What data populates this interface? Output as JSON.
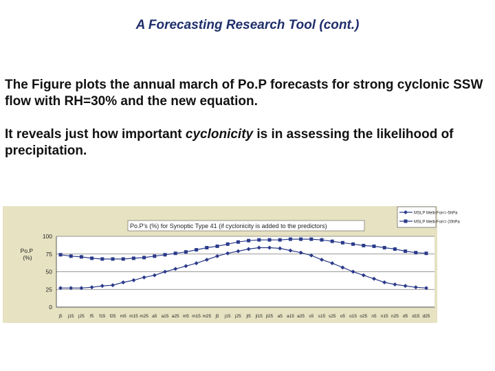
{
  "slide": {
    "title": "A Forecasting Research Tool (cont.)",
    "paragraph1": "The Figure plots the annual march of Po.P forecasts for strong cyclonic SSW flow with RH=30% and the new equation.",
    "paragraph2_before": "It reveals just how important ",
    "paragraph2_emphasis": "cyclonicity",
    "paragraph2_after": " is in assessing the likelihood of precipitation."
  },
  "chart_data": {
    "type": "line",
    "title": "Po.P's (%) for Synoptic Type 41 (if cyclonicity is added to the predictors)",
    "ylabel": "Po.P (%)",
    "ylim": [
      0,
      100
    ],
    "yticks": [
      0,
      25,
      50,
      75,
      100
    ],
    "grid": true,
    "legend_position": "top-right",
    "colors": {
      "background": "#e6e2c2",
      "plot_area": "#ffffff",
      "line": "#2a3a8a",
      "gridline": "#777777"
    },
    "xtick_labels": [
      "j5",
      "j15",
      "j25",
      "f5",
      "f15",
      "f25",
      "m5",
      "m15",
      "m25",
      "a5",
      "a15",
      "a25",
      "m5",
      "m15",
      "m25",
      "j5",
      "j15",
      "j25",
      "jl5",
      "jl15",
      "jl25",
      "a5",
      "a15",
      "a25",
      "s5",
      "s15",
      "s25",
      "o5",
      "o15",
      "o25",
      "n5",
      "n15",
      "n25",
      "d5",
      "d15",
      "d25"
    ],
    "series": [
      {
        "name": "MSLP Melb-Forr=-5hPa",
        "marker": "diamond",
        "values": [
          27,
          27,
          27,
          28,
          30,
          31,
          35,
          38,
          42,
          45,
          50,
          54,
          58,
          62,
          67,
          72,
          76,
          79,
          82,
          84,
          84,
          83,
          80,
          77,
          73,
          67,
          62,
          56,
          50,
          45,
          40,
          35,
          32,
          30,
          28,
          27
        ]
      },
      {
        "name": "MSLP Melb-Forr=-20hPa",
        "marker": "square",
        "values": [
          74,
          72,
          71,
          69,
          68,
          68,
          68,
          69,
          70,
          72,
          74,
          76,
          78,
          81,
          84,
          86,
          89,
          92,
          94,
          95,
          95,
          95,
          96,
          96,
          96,
          95,
          93,
          91,
          89,
          87,
          86,
          84,
          82,
          79,
          77,
          76
        ]
      }
    ]
  }
}
